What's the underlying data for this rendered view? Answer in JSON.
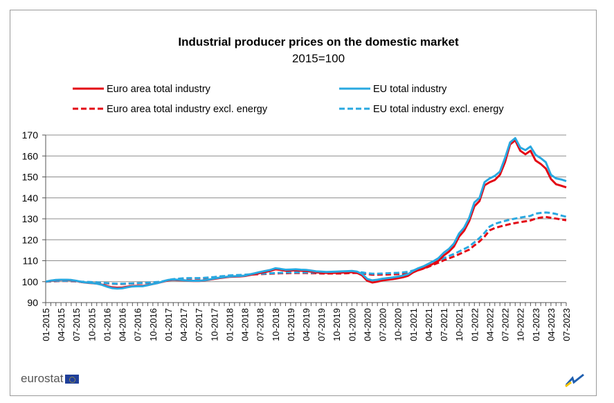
{
  "chart_data": {
    "type": "line",
    "title": "Industrial producer prices on the domestic market",
    "subtitle": "2015=100",
    "xlabel": "",
    "ylabel": "",
    "ylim": [
      90,
      170
    ],
    "yticks": [
      90,
      100,
      110,
      120,
      130,
      140,
      150,
      160,
      170
    ],
    "grid": true,
    "legend_position": "top",
    "x_tick_labels": [
      "01-2015",
      "04-2015",
      "07-2015",
      "10-2015",
      "01-2016",
      "04-2016",
      "07-2016",
      "10-2016",
      "01-2017",
      "04-2017",
      "07-2017",
      "10-2017",
      "01-2018",
      "04-2018",
      "07-2018",
      "10-2018",
      "01-2019",
      "04-2019",
      "07-2019",
      "10-2019",
      "01-2020",
      "04-2020",
      "07-2020",
      "10-2020",
      "01-2021",
      "04-2021",
      "07-2021",
      "10-2021",
      "01-2022",
      "04-2022",
      "07-2022",
      "10-2022",
      "01-2023",
      "04-2023",
      "07-2023"
    ],
    "x_start": "01-2015",
    "x_end": "07-2023",
    "x_frequency": "monthly",
    "series": [
      {
        "name": "Euro area total industry",
        "color": "#e30613",
        "style": "solid",
        "values": [
          100,
          100.4,
          100.7,
          100.8,
          100.8,
          100.7,
          100.3,
          99.8,
          99.5,
          99.3,
          99.1,
          98.6,
          97.9,
          97.3,
          97.1,
          97.2,
          97.6,
          97.9,
          98,
          98,
          98.4,
          98.9,
          99.4,
          100,
          100.6,
          100.8,
          100.7,
          100.6,
          100.4,
          100.3,
          100.3,
          100.5,
          100.9,
          101.3,
          101.7,
          102,
          102.3,
          102.4,
          102.5,
          102.7,
          103.2,
          103.6,
          104.1,
          104.6,
          105.1,
          105.9,
          105.6,
          105.2,
          105.3,
          105.4,
          105.2,
          105.1,
          104.8,
          104.4,
          104.3,
          104.1,
          104.1,
          104.2,
          104.3,
          104.4,
          104.5,
          104.2,
          103,
          100.4,
          99.6,
          100,
          100.6,
          100.9,
          101.2,
          101.6,
          102.1,
          102.8,
          104.4,
          105.5,
          106.3,
          107.4,
          108.6,
          110,
          112.5,
          114.3,
          116.8,
          121.5,
          124.3,
          129,
          136,
          138.5,
          146,
          147.5,
          148.5,
          151,
          157,
          165.5,
          167.5,
          162.5,
          160.8,
          162.5,
          157.8,
          156.2,
          154,
          149,
          146.5,
          145.8,
          145
        ]
      },
      {
        "name": "EU total industry",
        "color": "#29a8e0",
        "style": "solid",
        "values": [
          100,
          100.5,
          100.8,
          100.9,
          100.9,
          100.8,
          100.4,
          99.9,
          99.6,
          99.4,
          99.1,
          98.5,
          97.6,
          96.9,
          96.7,
          96.8,
          97.3,
          97.7,
          97.8,
          97.8,
          98.3,
          98.9,
          99.4,
          100.1,
          100.8,
          101,
          100.9,
          100.7,
          100.5,
          100.4,
          100.4,
          100.6,
          101,
          101.5,
          101.9,
          102.2,
          102.5,
          102.6,
          102.7,
          102.9,
          103.5,
          104,
          104.6,
          105.1,
          105.6,
          106.4,
          106.1,
          105.7,
          105.8,
          105.9,
          105.7,
          105.6,
          105.3,
          104.9,
          104.8,
          104.6,
          104.7,
          104.8,
          104.9,
          105,
          105.1,
          104.8,
          103.7,
          101.3,
          100.6,
          100.9,
          101.4,
          101.7,
          102,
          102.4,
          102.9,
          103.6,
          105.2,
          106.4,
          107.3,
          108.5,
          109.8,
          111.3,
          113.8,
          115.6,
          118.2,
          123,
          125.8,
          130.5,
          137.8,
          140,
          147.5,
          149.3,
          150.5,
          152.5,
          159,
          166.5,
          168.5,
          164,
          162.8,
          164.5,
          160.5,
          159,
          157,
          151,
          149.3,
          148.8,
          148
        ]
      },
      {
        "name": "Euro area total industry excl. energy",
        "color": "#e30613",
        "style": "dashed",
        "values": [
          100,
          100.1,
          100.2,
          100.3,
          100.3,
          100.2,
          100.1,
          99.9,
          99.8,
          99.7,
          99.6,
          99.4,
          99.2,
          99,
          98.9,
          98.9,
          99,
          99.1,
          99.2,
          99.3,
          99.4,
          99.6,
          99.8,
          100.1,
          100.6,
          101,
          101.2,
          101.4,
          101.5,
          101.5,
          101.5,
          101.6,
          101.8,
          102,
          102.3,
          102.5,
          102.8,
          102.9,
          103,
          103.1,
          103.3,
          103.5,
          103.6,
          103.7,
          103.8,
          103.9,
          104,
          104,
          104.1,
          104.1,
          104.1,
          104.1,
          104,
          104,
          103.9,
          103.9,
          103.9,
          103.9,
          103.9,
          104,
          104.1,
          104.1,
          104,
          103.6,
          103.3,
          103.3,
          103.4,
          103.4,
          103.5,
          103.6,
          103.8,
          104.1,
          104.7,
          105.4,
          106.2,
          107.1,
          108.1,
          109.1,
          110.2,
          111.1,
          112,
          113.1,
          114.2,
          115.3,
          117.3,
          119.2,
          121.5,
          124.5,
          125.6,
          126.3,
          126.9,
          127.5,
          128,
          128.4,
          128.8,
          129.2,
          130.1,
          130.6,
          130.9,
          130.5,
          130.1,
          129.7,
          129.3
        ]
      },
      {
        "name": "EU total industry excl. energy",
        "color": "#29a8e0",
        "style": "dashed",
        "values": [
          100,
          100.2,
          100.3,
          100.4,
          100.4,
          100.3,
          100.2,
          100,
          99.9,
          99.8,
          99.7,
          99.5,
          99.3,
          99.1,
          99,
          99,
          99.1,
          99.2,
          99.3,
          99.4,
          99.5,
          99.7,
          99.9,
          100.2,
          100.8,
          101.2,
          101.4,
          101.6,
          101.7,
          101.7,
          101.7,
          101.8,
          102,
          102.2,
          102.5,
          102.7,
          103,
          103.1,
          103.2,
          103.3,
          103.5,
          103.7,
          103.8,
          103.9,
          104,
          104.1,
          104.2,
          104.3,
          104.4,
          104.4,
          104.4,
          104.4,
          104.3,
          104.3,
          104.2,
          104.2,
          104.2,
          104.2,
          104.3,
          104.4,
          104.5,
          104.5,
          104.4,
          104,
          103.8,
          103.8,
          103.9,
          104,
          104.1,
          104.2,
          104.4,
          104.7,
          105.3,
          106.1,
          107,
          108,
          109,
          110.1,
          111.2,
          112.2,
          113.2,
          114.4,
          115.6,
          116.8,
          118.8,
          120.8,
          123.3,
          126.3,
          127.6,
          128.3,
          129,
          129.6,
          130.1,
          130.6,
          131,
          131.4,
          132.5,
          132.8,
          133,
          132.8,
          132.3,
          131.6,
          131
        ]
      }
    ]
  },
  "branding": {
    "logo": "eurostat"
  }
}
